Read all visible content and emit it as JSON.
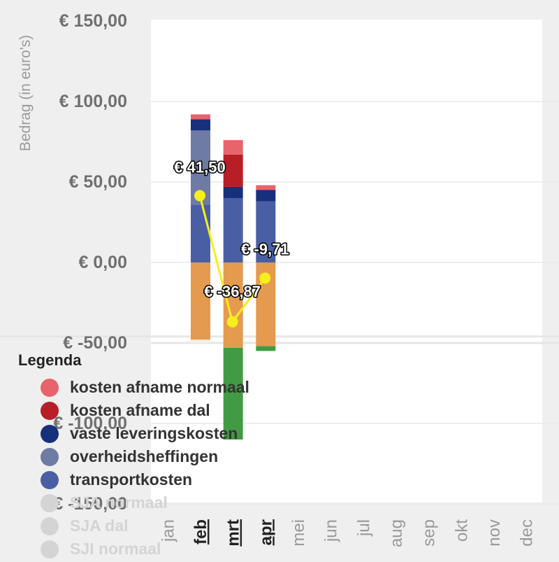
{
  "chart_data": {
    "type": "bar",
    "stacked": true,
    "ylabel": "Bedrag (in euro's)",
    "ylim": [
      -150,
      150
    ],
    "yticks": [
      150,
      100,
      50,
      0,
      -50,
      -100,
      -150
    ],
    "ytick_labels": [
      "€ 150,00",
      "€ 100,00",
      "€ 50,00",
      "€ 0,00",
      "€ -50,00",
      "€ -100,00",
      "€ -150,00"
    ],
    "grid": true,
    "categories": [
      "jan",
      "feb",
      "mrt",
      "apr",
      "mei",
      "jun",
      "jul",
      "aug",
      "sep",
      "okt",
      "nov",
      "dec"
    ],
    "active_categories": [
      "feb",
      "mrt",
      "apr"
    ],
    "series": [
      {
        "name": "transportkosten",
        "color": "#4a5fa3",
        "values": [
          0,
          36,
          40,
          38,
          0,
          0,
          0,
          0,
          0,
          0,
          0,
          0
        ]
      },
      {
        "name": "overheidsheffingen",
        "color": "#6e7ba5",
        "values": [
          0,
          46,
          0,
          0,
          0,
          0,
          0,
          0,
          0,
          0,
          0,
          0
        ]
      },
      {
        "name": "vaste leveringskosten",
        "color": "#16307c",
        "values": [
          0,
          7,
          7,
          7,
          0,
          0,
          0,
          0,
          0,
          0,
          0,
          0
        ]
      },
      {
        "name": "kosten afname dal",
        "color": "#b71e25",
        "values": [
          0,
          0,
          20,
          0,
          0,
          0,
          0,
          0,
          0,
          0,
          0,
          0
        ]
      },
      {
        "name": "kosten afname normaal",
        "color": "#e8636b",
        "values": [
          0,
          3,
          9,
          3,
          0,
          0,
          0,
          0,
          0,
          0,
          0,
          0
        ]
      },
      {
        "name": "SJA normaal",
        "color": "#e49a4f",
        "values": [
          0,
          -48,
          -53,
          -52,
          0,
          0,
          0,
          0,
          0,
          0,
          0,
          0
        ]
      },
      {
        "name": "SJA dal",
        "color": "#439a44",
        "values": [
          0,
          0,
          -57,
          -3,
          0,
          0,
          0,
          0,
          0,
          0,
          0,
          0
        ]
      },
      {
        "name": "SJI normaal",
        "color": "#f2efe6",
        "values": [
          0,
          -2,
          0,
          0,
          0,
          0,
          0,
          0,
          0,
          0,
          0,
          0
        ]
      }
    ],
    "line": {
      "color": "#f6ef1b",
      "points": [
        {
          "category": "feb",
          "value": 41.5,
          "label": "€ 41,50"
        },
        {
          "category": "mrt",
          "value": -36.87,
          "label": "€ -36,87"
        },
        {
          "category": "apr",
          "value": -9.71,
          "label": "€ -9,71"
        }
      ]
    }
  },
  "legend": {
    "title": "Legenda",
    "items": [
      {
        "label": "kosten afname normaal",
        "color": "#e8636b",
        "hidden": false
      },
      {
        "label": "kosten afname dal",
        "color": "#b71e25",
        "hidden": false
      },
      {
        "label": "vaste leveringskosten",
        "color": "#16307c",
        "hidden": false
      },
      {
        "label": "overheidsheffingen",
        "color": "#6e7ba5",
        "hidden": false
      },
      {
        "label": "transportkosten",
        "color": "#4a5fa3",
        "hidden": false
      },
      {
        "label": "SJA normaal",
        "color": "#d4d4d4",
        "hidden": true
      },
      {
        "label": "SJA dal",
        "color": "#d4d4d4",
        "hidden": true
      },
      {
        "label": "SJI normaal",
        "color": "#d4d4d4",
        "hidden": true
      }
    ]
  }
}
